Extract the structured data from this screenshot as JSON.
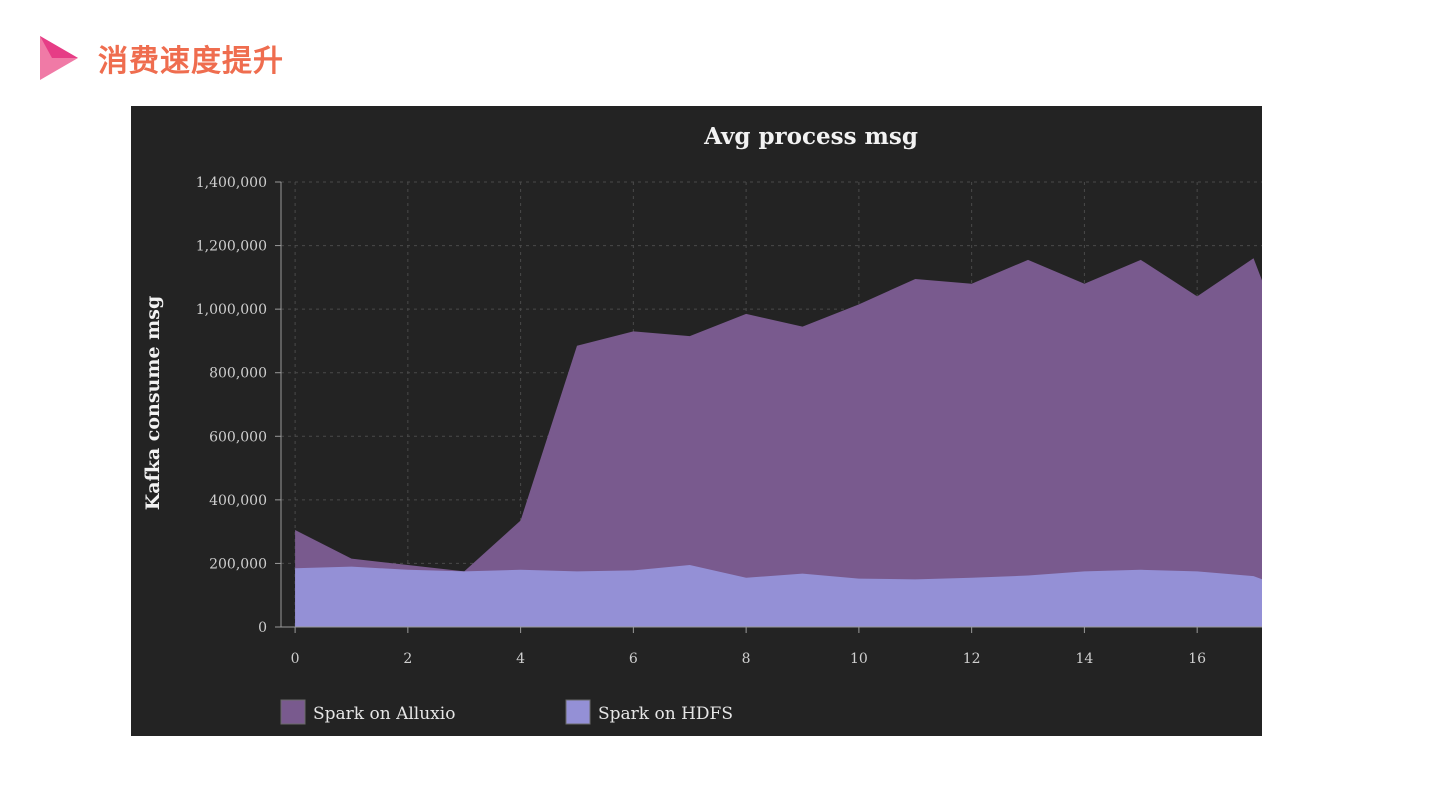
{
  "page": {
    "title": "消费速度提升",
    "accent_color": "#ef6d4f",
    "icon": "play-triangle-icon"
  },
  "chart_data": {
    "type": "area",
    "title": "Avg process msg",
    "xlabel": "",
    "ylabel": "Kafka consume msg",
    "x": [
      0,
      1,
      2,
      3,
      4,
      5,
      6,
      7,
      8,
      9,
      10,
      11,
      12,
      13,
      14,
      15,
      16,
      17
    ],
    "x_ticks": [
      "0",
      "2",
      "4",
      "6",
      "8",
      "10",
      "12",
      "14",
      "16"
    ],
    "y_ticks": [
      "0",
      "200,000",
      "400,000",
      "600,000",
      "800,000",
      "1,000,000",
      "1,200,000",
      "1,400,000"
    ],
    "xlim": [
      -0.25,
      17.15
    ],
    "ylim": [
      0,
      1400000
    ],
    "grid": true,
    "legend_position": "bottom-left",
    "series": [
      {
        "name": "Spark on Alluxio",
        "color": "#795a8e",
        "values": [
          305000,
          215000,
          195000,
          175000,
          335000,
          885000,
          930000,
          915000,
          985000,
          945000,
          1015000,
          1095000,
          1080000,
          1155000,
          1080000,
          1155000,
          1040000,
          1160000
        ]
      },
      {
        "name": "Spark on HDFS",
        "color": "#9490d6",
        "values": [
          185000,
          190000,
          180000,
          175000,
          180000,
          175000,
          178000,
          195000,
          155000,
          168000,
          152000,
          150000,
          155000,
          162000,
          175000,
          180000,
          175000,
          160000
        ]
      }
    ],
    "background_color": "#232323"
  }
}
